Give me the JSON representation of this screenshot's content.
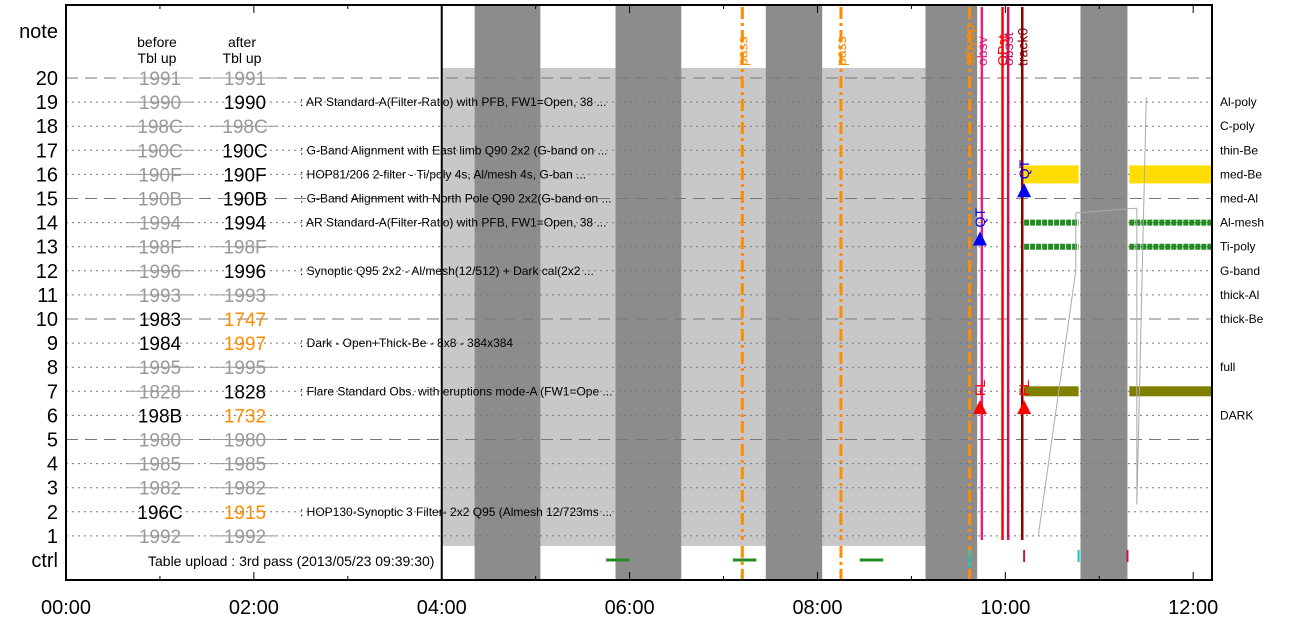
{
  "chart_data": {
    "type": "table",
    "y_axis_title": "note",
    "header_before": [
      "before",
      "Tbl up"
    ],
    "header_after": [
      "after",
      "Tbl up"
    ],
    "x_ticks": [
      "00:00",
      "02:00",
      "04:00",
      "06:00",
      "08:00",
      "10:00",
      "12:00"
    ],
    "x_range_hours": [
      0,
      12.2
    ],
    "ctrl_label": "ctrl",
    "ctrl_text": "Table upload : 3rd pass (2013/05/23 09:39:30)",
    "rows": [
      {
        "note": "20",
        "before": "1991",
        "before_color": "#999999",
        "after": "1991",
        "after_color": "#999999",
        "desc": "",
        "right": ""
      },
      {
        "note": "19",
        "before": "1990",
        "before_color": "#999999",
        "after": "1990",
        "after_color": "#000000",
        "desc": ": AR Standard-A(Filter-Ratio) with PFB, FW1=Open, 38 ...",
        "right": "Al-poly"
      },
      {
        "note": "18",
        "before": "198C",
        "before_color": "#999999",
        "after": "198C",
        "after_color": "#999999",
        "desc": "",
        "right": "C-poly"
      },
      {
        "note": "17",
        "before": "190C",
        "before_color": "#999999",
        "after": "190C",
        "after_color": "#000000",
        "desc": ": G-Band Alignment with East limb Q90 2x2 (G-band on ...",
        "right": "thin-Be"
      },
      {
        "note": "16",
        "before": "190F",
        "before_color": "#999999",
        "after": "190F",
        "after_color": "#000000",
        "desc": ": HOP81/206 2-filter - Ti/poly 4s, Al/mesh 4s, G-ban ...",
        "right": "med-Be"
      },
      {
        "note": "15",
        "before": "190B",
        "before_color": "#999999",
        "after": "190B",
        "after_color": "#000000",
        "desc": ": G-Band Alignment with North Pole Q90 2x2(G-band on ...",
        "right": "med-Al"
      },
      {
        "note": "14",
        "before": "1994",
        "before_color": "#999999",
        "after": "1994",
        "after_color": "#000000",
        "desc": ": AR Standard-A(Filter-Ratio) with PFB, FW1=Open, 38 ...",
        "right": "Al-mesh"
      },
      {
        "note": "13",
        "before": "198F",
        "before_color": "#999999",
        "after": "198F",
        "after_color": "#999999",
        "desc": "",
        "right": "Ti-poly"
      },
      {
        "note": "12",
        "before": "1996",
        "before_color": "#999999",
        "after": "1996",
        "after_color": "#000000",
        "desc": ": Synoptic Q95 2x2 - Al/mesh(12/512) + Dark cal(2x2 ...",
        "right": "G-band"
      },
      {
        "note": "11",
        "before": "1993",
        "before_color": "#999999",
        "after": "1993",
        "after_color": "#999999",
        "desc": "",
        "right": "thick-Al"
      },
      {
        "note": "10",
        "before": "1983",
        "before_color": "#000000",
        "after": "1747",
        "after_color": "#ff8c00",
        "desc": "",
        "right": "thick-Be"
      },
      {
        "note": "9",
        "before": "1984",
        "before_color": "#000000",
        "after": "1997",
        "after_color": "#ff8c00",
        "desc": ": Dark - Open+Thick-Be - 8x8 - 384x384",
        "right": ""
      },
      {
        "note": "8",
        "before": "1995",
        "before_color": "#999999",
        "after": "1995",
        "after_color": "#999999",
        "desc": "",
        "right": "full"
      },
      {
        "note": "7",
        "before": "1828",
        "before_color": "#999999",
        "after": "1828",
        "after_color": "#000000",
        "desc": ": Flare Standard Obs. with eruptions mode-A (FW1=Ope ...",
        "right": ""
      },
      {
        "note": "6",
        "before": "198B",
        "before_color": "#000000",
        "after": "1732",
        "after_color": "#ff8c00",
        "desc": "",
        "right": "DARK"
      },
      {
        "note": "5",
        "before": "1980",
        "before_color": "#999999",
        "after": "1980",
        "after_color": "#999999",
        "desc": "",
        "right": ""
      },
      {
        "note": "4",
        "before": "1985",
        "before_color": "#999999",
        "after": "1985",
        "after_color": "#999999",
        "desc": "",
        "right": ""
      },
      {
        "note": "3",
        "before": "1982",
        "before_color": "#999999",
        "after": "1982",
        "after_color": "#999999",
        "desc": "",
        "right": ""
      },
      {
        "note": "2",
        "before": "196C",
        "before_color": "#000000",
        "after": "1915",
        "after_color": "#ff8c00",
        "desc": ": HOP130-Synoptic 3 Filter- 2x2 Q95 (Almesh 12/723ms ...",
        "right": ""
      },
      {
        "note": "1",
        "before": "1992",
        "before_color": "#999999",
        "after": "1992",
        "after_color": "#999999",
        "desc": "",
        "right": ""
      }
    ],
    "gray_bands_hours": [
      [
        4.35,
        5.05
      ],
      [
        5.85,
        6.55
      ],
      [
        7.45,
        8.05
      ],
      [
        9.15,
        9.7
      ],
      [
        10.8,
        11.3
      ]
    ],
    "table_region_hours": [
      4.0,
      9.65
    ],
    "vertical_markers": [
      {
        "label": "pass",
        "hour": 7.2,
        "color": "#ff8c00"
      },
      {
        "label": "pass",
        "hour": 8.25,
        "color": "#ff8c00"
      },
      {
        "label": "stbyop",
        "hour": 9.62,
        "color": "#ff8c00"
      },
      {
        "label": "obsv",
        "hour": 9.75,
        "color": "#dd2288"
      },
      {
        "label": "OPst",
        "hour": 9.97,
        "color": "#ff0000"
      },
      {
        "label": "obsst",
        "hour": 10.03,
        "color": "#cc1155"
      },
      {
        "label": "track0",
        "hour": 10.18,
        "color": "#8b0000"
      }
    ],
    "point_markers": [
      {
        "label": "QT",
        "hour": 9.73,
        "row": 13.3,
        "color": "#0000ee"
      },
      {
        "label": "QT",
        "hour": 10.2,
        "row": 15.3,
        "color": "#0000ee"
      },
      {
        "label": "FL",
        "hour": 9.73,
        "row": 6.3,
        "color": "#ff0000"
      },
      {
        "label": "FL",
        "hour": 10.2,
        "row": 6.3,
        "color": "#ff0000"
      }
    ],
    "observation_bars": [
      {
        "row": 16,
        "segments": [
          [
            10.2,
            10.78
          ],
          [
            11.32,
            12.2
          ]
        ],
        "color": "#ffdd00",
        "style": "solid"
      },
      {
        "row": 14,
        "segments": [
          [
            10.2,
            10.78
          ],
          [
            11.32,
            12.2
          ]
        ],
        "color": "#228b22",
        "style": "dashed"
      },
      {
        "row": 13,
        "segments": [
          [
            10.2,
            10.78
          ],
          [
            11.32,
            12.2
          ]
        ],
        "color": "#228b22",
        "style": "dashed"
      },
      {
        "row": 7,
        "segments": [
          [
            10.2,
            10.78
          ],
          [
            11.32,
            12.2
          ]
        ],
        "color": "#808000",
        "style": "solid"
      }
    ]
  }
}
